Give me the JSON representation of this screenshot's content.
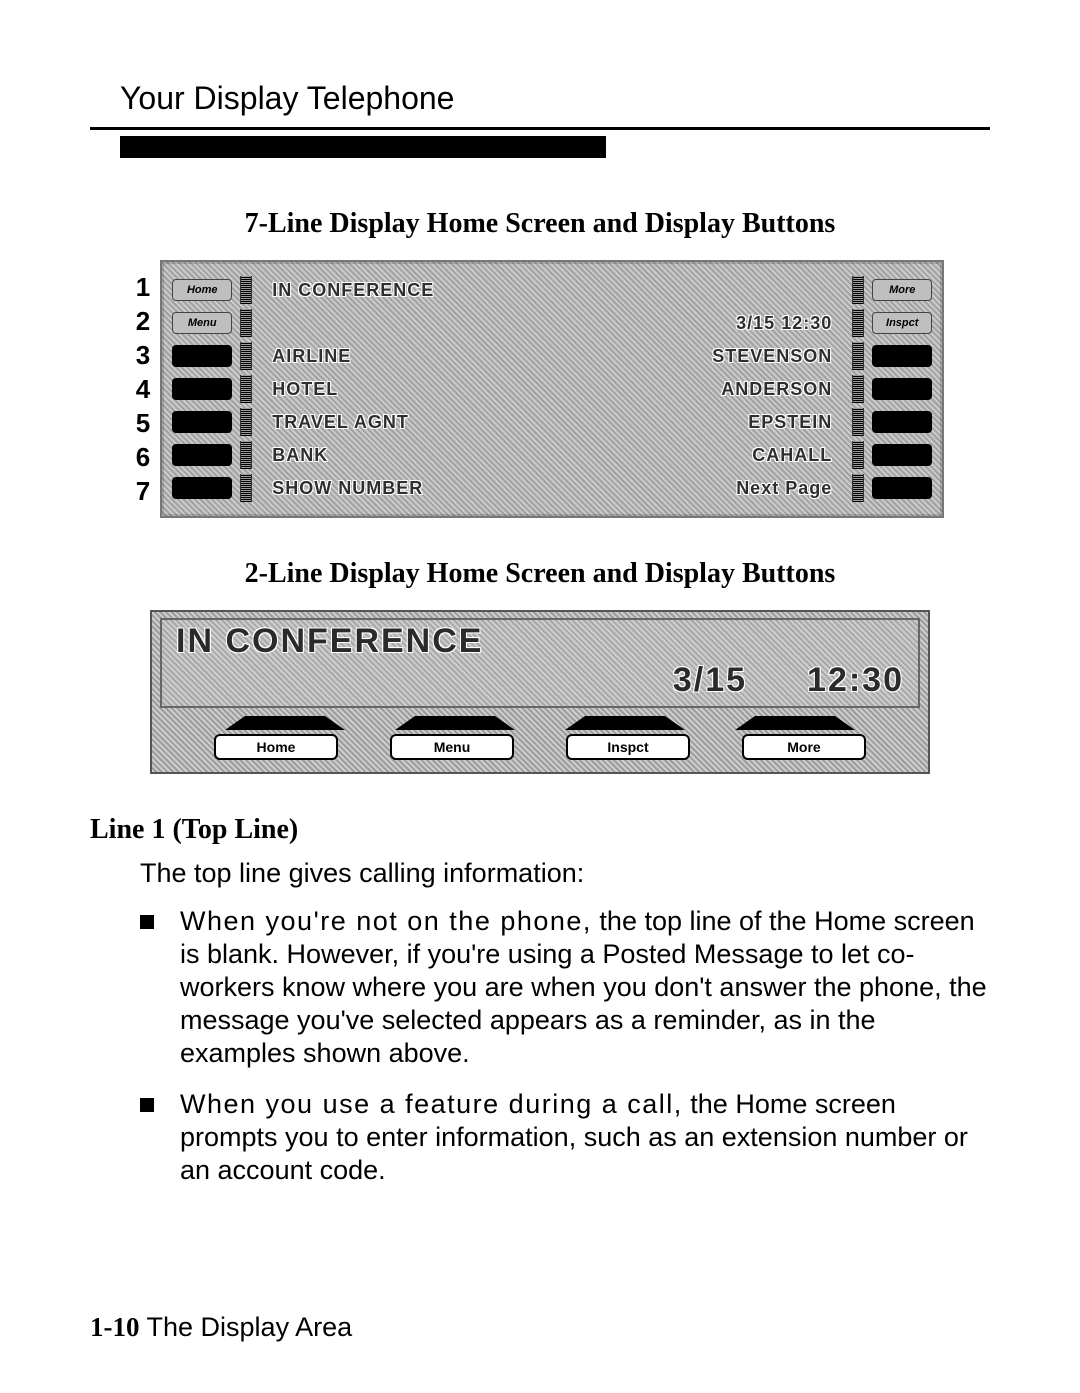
{
  "page": {
    "header_title": "Your Display Telephone",
    "footer_page": "1-10",
    "footer_text": "The Display Area"
  },
  "section7": {
    "title": "7-Line Display Home Screen and Display Buttons",
    "row_numbers": [
      "1",
      "2",
      "3",
      "4",
      "5",
      "6",
      "7"
    ],
    "rows": [
      {
        "left_is_label": true,
        "left_label": "Home",
        "center_left": "IN CONFERENCE",
        "center_right": "",
        "right_is_label": true,
        "right_label": "More"
      },
      {
        "left_is_label": true,
        "left_label": "Menu",
        "center_left": "",
        "center_right": "3/15   12:30",
        "right_is_label": true,
        "right_label": "Inspct"
      },
      {
        "left_is_label": false,
        "left_label": "",
        "center_left": "AIRLINE",
        "center_right": "STEVENSON",
        "right_is_label": false,
        "right_label": ""
      },
      {
        "left_is_label": false,
        "left_label": "",
        "center_left": "HOTEL",
        "center_right": "ANDERSON",
        "right_is_label": false,
        "right_label": ""
      },
      {
        "left_is_label": false,
        "left_label": "",
        "center_left": "TRAVEL AGNT",
        "center_right": "EPSTEIN",
        "right_is_label": false,
        "right_label": ""
      },
      {
        "left_is_label": false,
        "left_label": "",
        "center_left": "BANK",
        "center_right": "CAHALL",
        "right_is_label": false,
        "right_label": ""
      },
      {
        "left_is_label": false,
        "left_label": "",
        "center_left": "SHOW NUMBER",
        "center_right": "Next Page",
        "right_is_label": false,
        "right_label": ""
      }
    ]
  },
  "section2": {
    "title": "2-Line Display Home Screen and Display Buttons",
    "line1": "IN CONFERENCE",
    "line2_date": "3/15",
    "line2_time": "12:30",
    "buttons": [
      "Home",
      "Menu",
      "Inspct",
      "More"
    ]
  },
  "body": {
    "subhead": "Line 1 (Top Line)",
    "lead": "The top line gives calling information:",
    "bullets": [
      {
        "lead": "When you're not on the phone,",
        "rest": " the top line of the Home screen is blank. However, if you're using a Posted Message to let co-workers know where you are when you don't answer the phone, the message you've selected appears as a reminder, as in the examples shown above."
      },
      {
        "lead": "When you use a feature during a call,",
        "rest": " the Home screen prompts you to enter information, such as an extension number or an account code."
      }
    ]
  },
  "style": {
    "background_color": "#ffffff",
    "text_color": "#000000",
    "display_bg": "#b8b8b8",
    "outline_text": "#2e2e2e",
    "section_title_fontsize": 28,
    "body_fontsize": 27,
    "display7_text_fontsize": 18,
    "display2_text_fontsize": 34
  }
}
